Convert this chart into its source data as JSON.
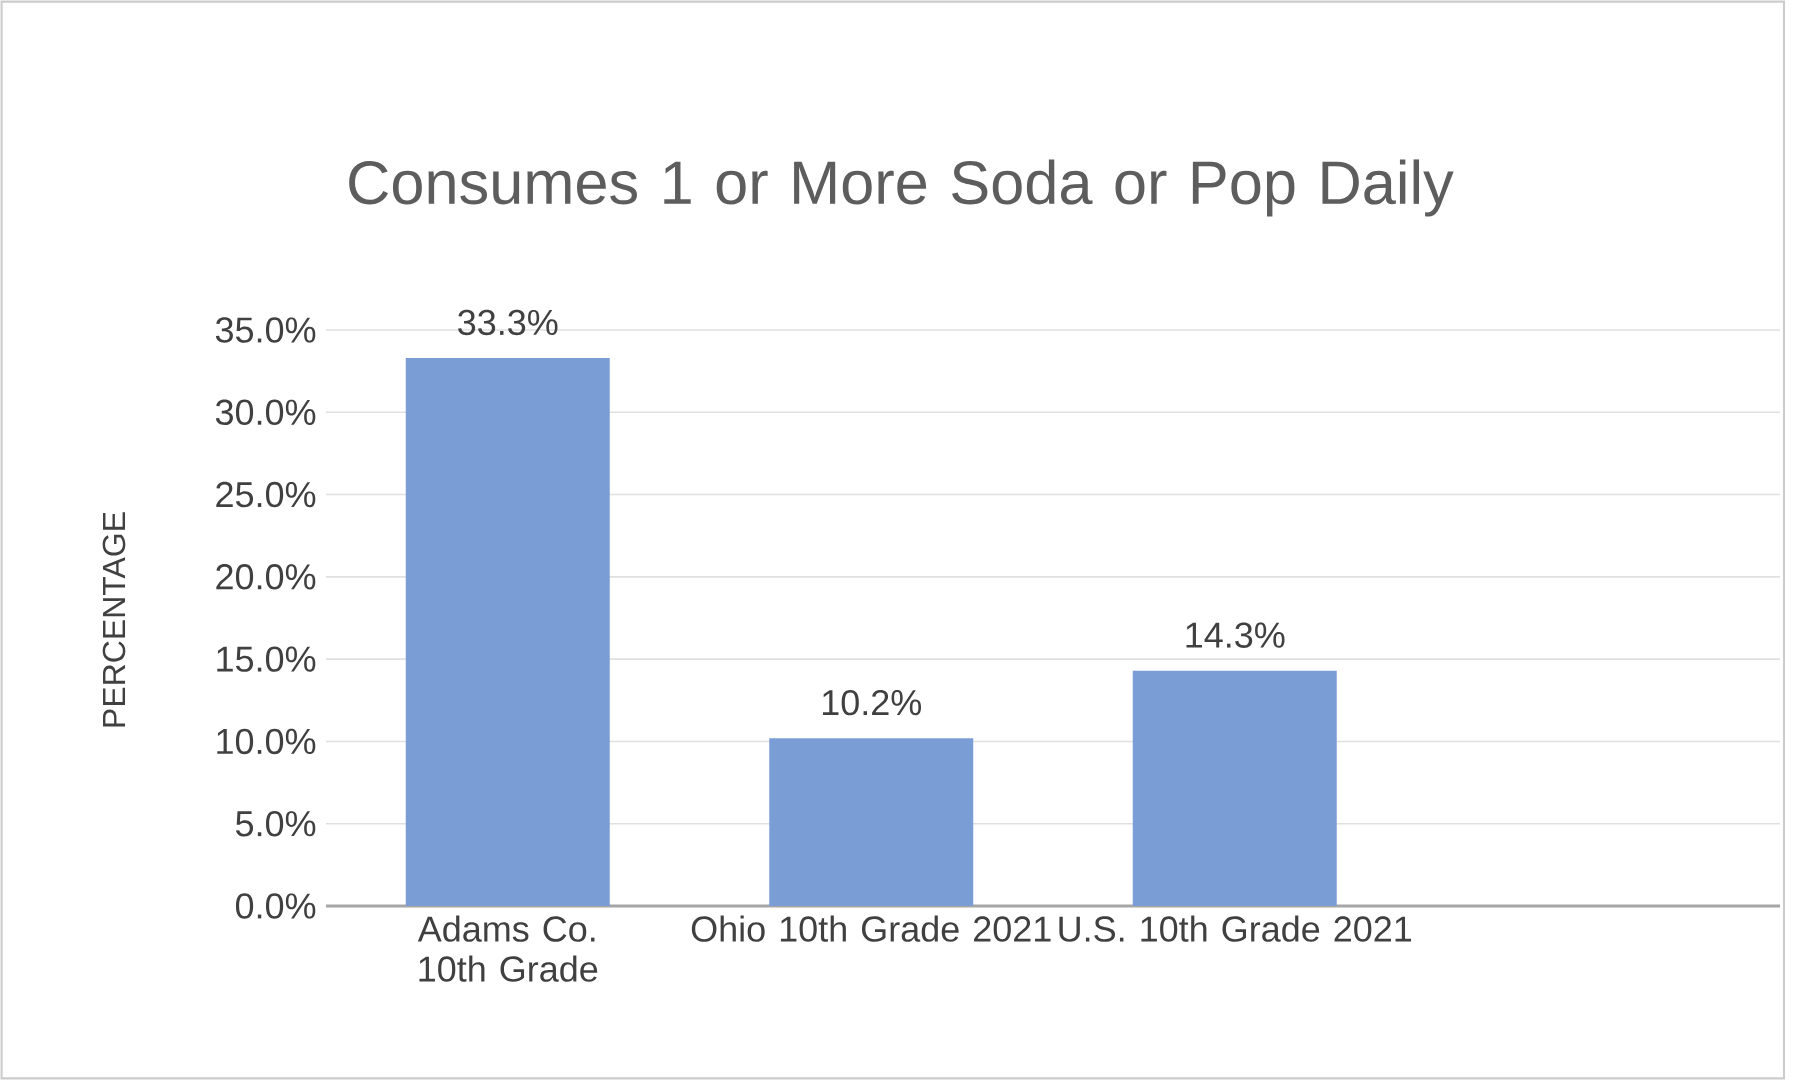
{
  "chart_data": {
    "type": "bar",
    "title": "Consumes 1 or More Soda or Pop Daily",
    "ylabel": "PERCENTAGE",
    "categories": [
      "Adams Co. 10th Grade",
      "Ohio 10th Grade 2021",
      "U.S. 10th Grade 2021",
      null
    ],
    "values": [
      33.3,
      10.2,
      14.3,
      null
    ],
    "value_labels": [
      "33.3%",
      "10.2%",
      "14.3%",
      null
    ],
    "color": "#7a9dd6",
    "ylim": [
      0,
      35
    ],
    "yticks": [
      {
        "value": 0,
        "label": "0.0%"
      },
      {
        "value": 5,
        "label": "5.0%"
      },
      {
        "value": 10,
        "label": "10.0%"
      },
      {
        "value": 15,
        "label": "15.0%"
      },
      {
        "value": 20,
        "label": "20.0%"
      },
      {
        "value": 25,
        "label": "25.0%"
      },
      {
        "value": 30,
        "label": "30.0%"
      },
      {
        "value": 35,
        "label": "35.0%"
      }
    ],
    "grid": "y"
  }
}
